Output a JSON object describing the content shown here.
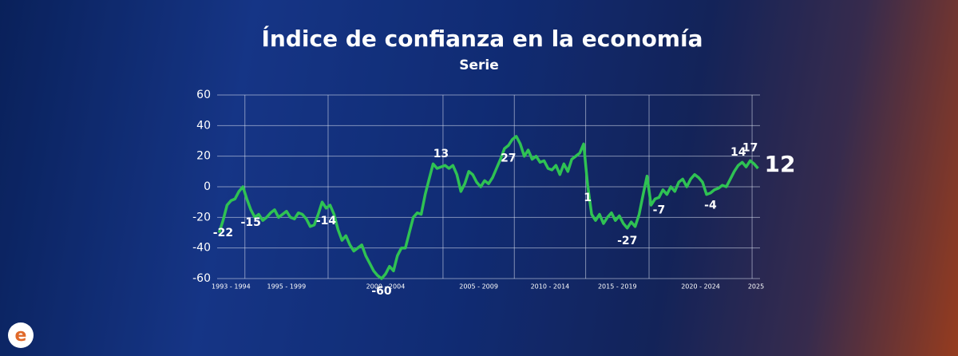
{
  "chart_data": {
    "type": "line",
    "title": "Índice de confianza en la economía",
    "subtitle": "Serie",
    "color": "#2fc253",
    "ylim": [
      -60,
      60
    ],
    "yticks": [
      -60,
      -40,
      -20,
      0,
      20,
      40,
      60
    ],
    "grid": true,
    "periods": [
      {
        "label": "1993 - 1994",
        "values": [
          -30,
          -22,
          -12,
          -9,
          -8,
          -3,
          0
        ],
        "labels": [
          -22
        ]
      },
      {
        "label": "1995 - 1999",
        "values": [
          -8,
          -15,
          -20,
          -18,
          -22,
          -20,
          -17,
          -15,
          -20,
          -18,
          -16,
          -20,
          -21,
          -17,
          -18,
          -21,
          -26,
          -25,
          -18,
          -10,
          -14
        ],
        "labels": [
          -15,
          -14
        ]
      },
      {
        "label": "2000 - 2004",
        "values": [
          -12,
          -18,
          -28,
          -35,
          -32,
          -38,
          -42,
          -40,
          -38,
          -45,
          -50,
          -55,
          -58,
          -60,
          -57,
          -52,
          -55,
          -45,
          -40,
          -40,
          -30,
          -20,
          -17,
          -18,
          -5,
          5,
          15,
          12,
          13
        ],
        "labels": [
          -60,
          13
        ]
      },
      {
        "label": "2005 - 2009",
        "values": [
          14,
          12,
          14,
          8,
          -3,
          2,
          10,
          8,
          3,
          0,
          4,
          2,
          6,
          12,
          18,
          25,
          27,
          31
        ],
        "labels": [
          27
        ]
      },
      {
        "label": "2010 - 2014",
        "values": [
          33,
          28,
          20,
          24,
          18,
          20,
          16,
          17,
          12,
          11,
          14,
          8,
          15,
          10,
          18,
          20,
          22,
          28
        ],
        "labels": []
      },
      {
        "label": "2015 - 2019",
        "values": [
          1,
          -18,
          -22,
          -18,
          -24,
          -20,
          -17,
          -22,
          -19,
          -24,
          -27,
          -23,
          -26,
          -18,
          -5,
          7
        ],
        "labels": [
          1,
          -27
        ]
      },
      {
        "label": "2020 - 2024",
        "values": [
          -12,
          -8,
          -7,
          -2,
          -5,
          0,
          -3,
          3,
          5,
          0,
          5,
          8,
          6,
          3,
          -5,
          -4,
          -2,
          -1,
          1,
          0,
          5,
          10,
          14,
          16,
          13,
          17
        ],
        "labels": [
          -7,
          -4,
          14,
          17
        ]
      },
      {
        "label": "2025",
        "values": [
          15,
          12
        ],
        "labels": [
          12
        ]
      }
    ]
  }
}
